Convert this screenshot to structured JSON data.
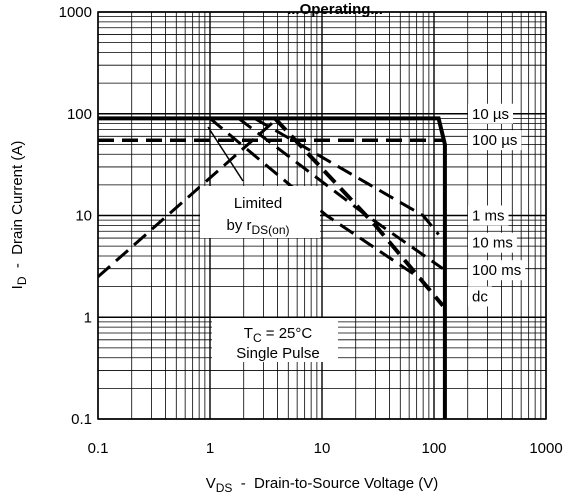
{
  "chart_data": {
    "type": "line",
    "title": "...Operating...",
    "xscale": "log",
    "yscale": "log",
    "xlim": [
      0.1,
      1000
    ],
    "ylim": [
      0.1,
      1000
    ],
    "grid": true,
    "x_ticks": [
      0.1,
      1,
      10,
      100,
      1000
    ],
    "x_tick_labels": [
      "0.1",
      "1",
      "10",
      "100",
      "1000"
    ],
    "y_ticks": [
      0.1,
      1,
      10,
      100,
      1000
    ],
    "y_tick_labels": [
      "0.1",
      "1",
      "10",
      "100",
      "1000"
    ],
    "xlabel": {
      "pre": "V",
      "sub": "DS",
      "post": "  -  Drain-to-Source Voltage (V)"
    },
    "ylabel": {
      "pre": "I",
      "sub": "D",
      "post": "  -  Drain Current (A)"
    },
    "annotations": {
      "limited_line1": "Limited",
      "limited_line2_pre": "by r",
      "limited_line2_sub": "DS(on)",
      "tc_pre": "T",
      "tc_sub": "C",
      "tc_post": " = 25°C",
      "single_pulse": "Single Pulse"
    },
    "series": [
      {
        "name": "10 µs",
        "style": "solid",
        "width": 4,
        "points": [
          [
            0.1,
            90
          ],
          [
            110,
            90
          ],
          [
            125,
            50
          ],
          [
            125,
            0.1
          ]
        ]
      },
      {
        "name": "100 µs",
        "style": "dash",
        "width": 3.5,
        "points": [
          [
            0.1,
            55
          ],
          [
            2.8,
            55
          ],
          [
            125,
            55
          ]
        ]
      },
      {
        "name": "1 ms",
        "style": "dash",
        "width": 3,
        "points": [
          [
            2.5,
            90
          ],
          [
            80,
            10
          ],
          [
            110,
            6.5
          ]
        ]
      },
      {
        "name": "10 ms",
        "style": "dash",
        "width": 3,
        "points": [
          [
            1.8,
            90
          ],
          [
            25,
            10
          ],
          [
            120,
            3
          ]
        ]
      },
      {
        "name": "100 ms",
        "style": "dash",
        "width": 3,
        "points": [
          [
            1.0,
            90
          ],
          [
            11,
            10
          ],
          [
            80,
            2.3
          ]
        ]
      },
      {
        "name": "dc",
        "style": "dash",
        "width": 4,
        "points": [
          [
            3.8,
            90
          ],
          [
            30,
            8
          ],
          [
            120,
            1.3
          ]
        ]
      },
      {
        "name": "Limited by rDS(on)",
        "style": "dash",
        "width": 3,
        "points": [
          [
            0.1,
            2.5
          ],
          [
            4,
            90
          ]
        ]
      }
    ],
    "legend": [
      {
        "text": "10 µs",
        "y_value": 100
      },
      {
        "text": "100 µs",
        "y_value": 55
      },
      {
        "text": "1 ms",
        "y_value": 10
      },
      {
        "text": "10 ms",
        "y_value": 5.4
      },
      {
        "text": "100 ms",
        "y_value": 2.9
      },
      {
        "text": "dc",
        "y_value": 1.6
      }
    ]
  }
}
